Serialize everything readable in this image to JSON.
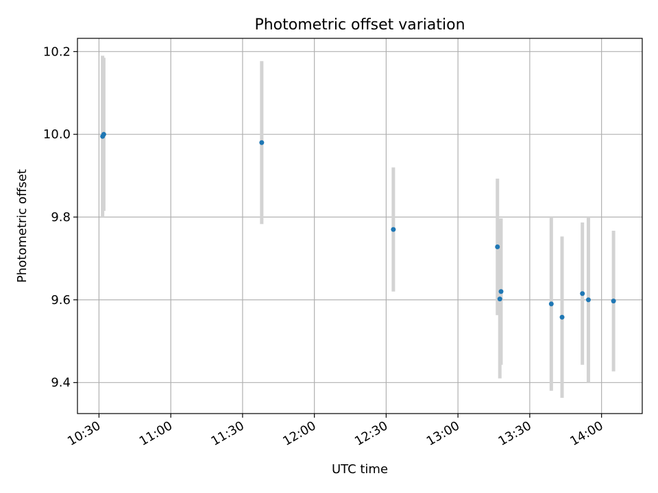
{
  "chart_data": {
    "type": "scatter",
    "title": "Photometric offset variation",
    "xlabel": "UTC time",
    "ylabel": "Photometric offset",
    "xlim": [
      "10:21",
      "14:17"
    ],
    "ylim": [
      9.325,
      10.232
    ],
    "grid": true,
    "x_ticks": [
      "10:30",
      "11:00",
      "11:30",
      "12:00",
      "12:30",
      "13:00",
      "13:30",
      "14:00"
    ],
    "y_ticks": [
      9.4,
      9.6,
      9.8,
      10.0,
      10.2
    ],
    "y_tick_labels": [
      "9.4",
      "9.6",
      "9.8",
      "10.0",
      "10.2"
    ],
    "colors": {
      "points": "#1f77b4",
      "error_bars": "#d3d3d3"
    },
    "points": [
      {
        "x": "10:31:30",
        "y": 9.995,
        "yerr": 0.195
      },
      {
        "x": "10:32:00",
        "y": 10.0,
        "yerr": 0.185
      },
      {
        "x": "11:38:00",
        "y": 9.98,
        "yerr": 0.197
      },
      {
        "x": "12:33:00",
        "y": 9.77,
        "yerr": 0.15
      },
      {
        "x": "13:16:30",
        "y": 9.728,
        "yerr": 0.165
      },
      {
        "x": "13:17:30",
        "y": 9.602,
        "yerr": 0.192
      },
      {
        "x": "13:18:00",
        "y": 9.62,
        "yerr": 0.177
      },
      {
        "x": "13:39:00",
        "y": 9.59,
        "yerr": 0.21
      },
      {
        "x": "13:43:30",
        "y": 9.558,
        "yerr": 0.195
      },
      {
        "x": "13:52:00",
        "y": 9.615,
        "yerr": 0.172
      },
      {
        "x": "13:54:30",
        "y": 9.6,
        "yerr": 0.2
      },
      {
        "x": "14:05:00",
        "y": 9.597,
        "yerr": 0.17
      }
    ]
  }
}
